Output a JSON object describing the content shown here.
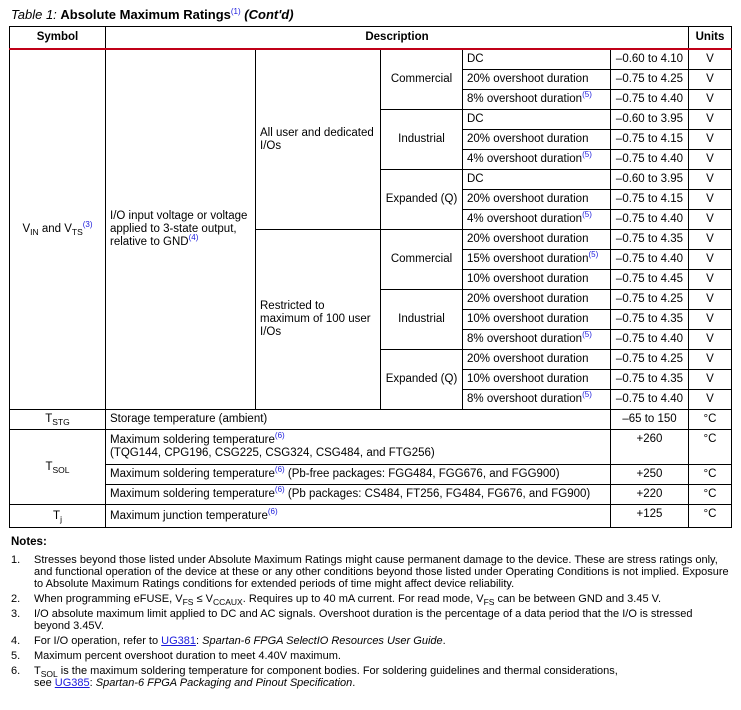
{
  "caption": {
    "prefix": "Table  1:",
    "title": "Absolute Maximum Ratings",
    "ref": "(1)",
    "suffix": "(Cont'd)"
  },
  "header": {
    "symbol": "Symbol",
    "description": "Description",
    "units": "Units"
  },
  "vin": {
    "symbol": {
      "a": "V",
      "sub1": "IN",
      "mid": " and V",
      "sub2": "TS",
      "ref": "(3)"
    },
    "description": "I/O input voltage or voltage applied to 3-state output, relative to GND",
    "description_ref": "(4)",
    "groups": [
      {
        "label": "All user and dedicated I/Os",
        "subgroups": [
          {
            "label": "Commercial",
            "rows": [
              {
                "cond": "DC",
                "ref": "",
                "value": "–0.60 to 4.10",
                "unit": "V"
              },
              {
                "cond": "20% overshoot duration",
                "ref": "",
                "value": "–0.75 to 4.25",
                "unit": "V"
              },
              {
                "cond": "8% overshoot duration",
                "ref": "(5)",
                "value": "–0.75 to 4.40",
                "unit": "V"
              }
            ]
          },
          {
            "label": "Industrial",
            "rows": [
              {
                "cond": "DC",
                "ref": "",
                "value": "–0.60 to 3.95",
                "unit": "V"
              },
              {
                "cond": "20% overshoot duration",
                "ref": "",
                "value": "–0.75 to 4.15",
                "unit": "V"
              },
              {
                "cond": "4% overshoot duration",
                "ref": "(5)",
                "value": "–0.75 to 4.40",
                "unit": "V"
              }
            ]
          },
          {
            "label": "Expanded (Q)",
            "rows": [
              {
                "cond": "DC",
                "ref": "",
                "value": "–0.60 to 3.95",
                "unit": "V"
              },
              {
                "cond": "20% overshoot duration",
                "ref": "",
                "value": "–0.75 to 4.15",
                "unit": "V"
              },
              {
                "cond": "4% overshoot duration",
                "ref": "(5)",
                "value": "–0.75 to 4.40",
                "unit": "V"
              }
            ]
          }
        ]
      },
      {
        "label": "Restricted to maximum of 100 user I/Os",
        "subgroups": [
          {
            "label": "Commercial",
            "rows": [
              {
                "cond": "20% overshoot duration",
                "ref": "",
                "value": "–0.75 to 4.35",
                "unit": "V"
              },
              {
                "cond": "15% overshoot duration",
                "ref": "(5)",
                "value": "–0.75 to 4.40",
                "unit": "V"
              },
              {
                "cond": "10% overshoot duration",
                "ref": "",
                "value": "–0.75 to 4.45",
                "unit": "V"
              }
            ]
          },
          {
            "label": "Industrial",
            "rows": [
              {
                "cond": "20% overshoot duration",
                "ref": "",
                "value": "–0.75 to 4.25",
                "unit": "V"
              },
              {
                "cond": "10% overshoot duration",
                "ref": "",
                "value": "–0.75 to 4.35",
                "unit": "V"
              },
              {
                "cond": "8% overshoot duration",
                "ref": "(5)",
                "value": "–0.75 to 4.40",
                "unit": "V"
              }
            ]
          },
          {
            "label": "Expanded (Q)",
            "rows": [
              {
                "cond": "20% overshoot duration",
                "ref": "",
                "value": "–0.75 to 4.25",
                "unit": "V"
              },
              {
                "cond": "10% overshoot duration",
                "ref": "",
                "value": "–0.75 to 4.35",
                "unit": "V"
              },
              {
                "cond": "8% overshoot duration",
                "ref": "(5)",
                "value": "–0.75 to 4.40",
                "unit": "V"
              }
            ]
          }
        ]
      }
    ]
  },
  "tstg": {
    "sym": "T",
    "sub": "STG",
    "desc": "Storage temperature (ambient)",
    "value": "–65 to 150",
    "unit": "°C"
  },
  "tsol": {
    "sym": "T",
    "sub": "SOL",
    "rows": [
      {
        "desc": "Maximum soldering temperature",
        "ref": "(6)",
        "desc2": "(TQG144, CPG196, CSG225, CSG324, CSG484, and FTG256)",
        "value": "+260",
        "unit": "°C"
      },
      {
        "desc": "Maximum soldering temperature",
        "ref": "(6)",
        "desc2": " (Pb-free packages: FGG484, FGG676, and FGG900)",
        "value": "+250",
        "unit": "°C"
      },
      {
        "desc": "Maximum soldering temperature",
        "ref": "(6)",
        "desc2": " (Pb packages: CS484, FT256, FG484, FG676, and FG900)",
        "value": "+220",
        "unit": "°C"
      }
    ]
  },
  "tj": {
    "sym": "T",
    "sub": "j",
    "desc": "Maximum junction temperature",
    "ref": "(6)",
    "value": "+125",
    "unit": "°C"
  },
  "notes": {
    "title": "Notes:",
    "items": [
      {
        "n": "1.",
        "text": "Stresses beyond those listed under Absolute Maximum Ratings might cause permanent damage to the device. These are stress ratings only, and functional operation of the device at these or any other conditions beyond those listed under Operating Conditions is not implied. Exposure to Absolute Maximum Ratings conditions for extended periods of time might affect device reliability."
      },
      {
        "n": "2.",
        "a": "When programming eFUSE, V",
        "s1": "FS",
        "b": " ≤ V",
        "s2": "CCAUX",
        "c": ". Requires up to 40 mA current. For read mode, V",
        "s3": "FS",
        "d": " can be between GND and 3.45 V."
      },
      {
        "n": "3.",
        "text": "I/O absolute maximum limit applied to DC and AC signals. Overshoot duration is the percentage of a data period that the I/O is stressed beyond 3.45V."
      },
      {
        "n": "4.",
        "pre": "For I/O operation, refer to ",
        "link": "UG381",
        "post": "Spartan-6 FPGA SelectIO Resources User Guide"
      },
      {
        "n": "5.",
        "text": "Maximum percent overshoot duration to meet 4.40V maximum."
      },
      {
        "n": "6.",
        "sym": "T",
        "sub": "SOL",
        "text": " is the maximum soldering temperature for component bodies. For soldering guidelines and thermal considerations,",
        "pre": "see ",
        "link": "UG385",
        "post": "Spartan-6 FPGA Packaging and Pinout Specification"
      }
    ]
  }
}
